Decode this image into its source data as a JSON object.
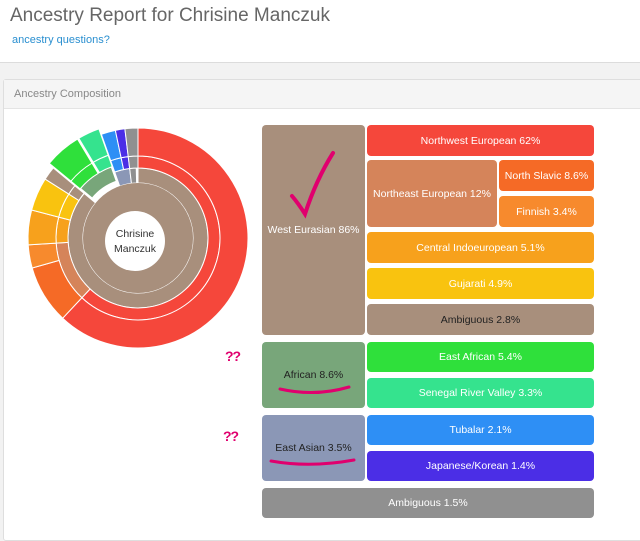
{
  "header": {
    "title": "Ancestry Report for Chrisine Manczuk",
    "help_link": "ancestry questions?"
  },
  "panel": {
    "title": "Ancestry Composition",
    "center_label_line1": "Chrisine",
    "center_label_line2": "Manczuk"
  },
  "ancestry": {
    "west_eurasian": "West Eurasian 86%",
    "northwest_european": "Northwest European 62%",
    "northeast_european": "Northeast European 12%",
    "north_slavic": "North Slavic 8.6%",
    "finnish": "Finnish 3.4%",
    "central_indoeuropean": "Central Indoeuropean 5.1%",
    "gujarati": "Gujarati 4.9%",
    "ambiguous_we": "Ambiguous 2.8%",
    "african": "African 8.6%",
    "east_african": "East African 5.4%",
    "senegal": "Senegal River Valley 3.3%",
    "east_asian": "East Asian 3.5%",
    "tubalar": "Tubalar 2.1%",
    "japanese_korean": "Japanese/Korean 1.4%",
    "ambiguous_total": "Ambiguous 1.5%"
  },
  "annotations": {
    "african_question": "??",
    "asian_question": "??"
  },
  "colors": {
    "west_eurasian": "#a88f7c",
    "northwest_european": "#f5473b",
    "northeast_european": "#d5845a",
    "north_slavic": "#f56a26",
    "finnish": "#f78a2d",
    "central_indoeuropean": "#f7a11c",
    "gujarati": "#f9c30f",
    "ambiguous": "#a88f7c",
    "african": "#78a67a",
    "east_african": "#2fe03b",
    "senegal": "#35e38e",
    "east_asian": "#8b97b6",
    "tubalar": "#2e8ff5",
    "japanese_korean": "#4b2ee6",
    "ambiguous_total": "#909090",
    "annotation": "#e0006e"
  }
}
